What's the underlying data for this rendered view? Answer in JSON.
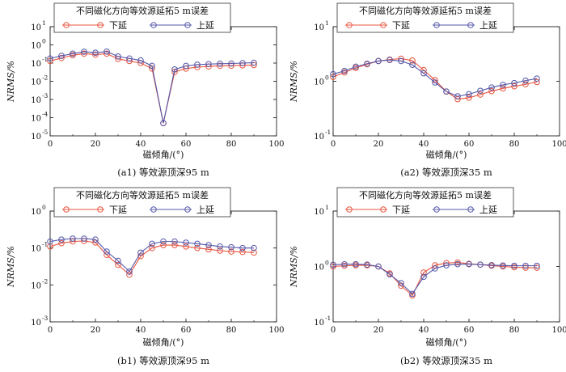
{
  "figure": {
    "captions": [
      "(a1) 等效源顶深95 m",
      "(a2) 等效源顶深35 m",
      "(b1) 等效源顶深95 m",
      "(b2) 等效源顶深35 m"
    ]
  },
  "colors": {
    "down": "#e8543f",
    "up": "#5457a8"
  },
  "chart_data": [
    {
      "type": "line",
      "panel": "a1",
      "title": "不同磁化方向等效源延拓5 m误差",
      "caption": "(a1) 等效源顶深95 m",
      "xlabel": "磁倾角/(°)",
      "ylabel": "NRMS/%",
      "xlim": [
        0,
        100
      ],
      "xticks": [
        0,
        20,
        40,
        60,
        80,
        100
      ],
      "ylim": [
        1e-05,
        10
      ],
      "yscale": "log",
      "yticks": [
        1e-05,
        0.0001,
        0.001,
        0.01,
        0.1,
        1,
        10
      ],
      "ytick_labels": [
        [
          "10",
          "-5"
        ],
        [
          "10",
          "-4"
        ],
        [
          "10",
          "-3"
        ],
        [
          "10",
          "-2"
        ],
        [
          "10",
          "-1"
        ],
        [
          "10",
          "0"
        ],
        [
          "10",
          "1"
        ]
      ],
      "legend": {
        "position": "top-center",
        "title": "不同磁化方向等效源延拓5 m误差"
      },
      "x": [
        0,
        5,
        10,
        15,
        20,
        25,
        30,
        35,
        40,
        45,
        50,
        55,
        60,
        65,
        70,
        75,
        80,
        85,
        90
      ],
      "series": [
        {
          "name": "下延",
          "values": [
            0.13,
            0.19,
            0.27,
            0.33,
            0.29,
            0.33,
            0.17,
            0.13,
            0.1,
            0.05,
            5e-05,
            0.033,
            0.05,
            0.06,
            0.065,
            0.07,
            0.072,
            0.075,
            0.078
          ]
        },
        {
          "name": "上延",
          "values": [
            0.18,
            0.25,
            0.33,
            0.42,
            0.37,
            0.43,
            0.23,
            0.18,
            0.14,
            0.07,
            5e-05,
            0.045,
            0.07,
            0.082,
            0.088,
            0.092,
            0.095,
            0.1,
            0.105
          ]
        }
      ]
    },
    {
      "type": "line",
      "panel": "a2",
      "title": "不同磁化方向等效源延拓5 m误差",
      "caption": "(a2) 等效源顶深35 m",
      "xlabel": "磁倾角/(°)",
      "ylabel": "NRMS/%",
      "xlim": [
        0,
        100
      ],
      "xticks": [
        0,
        20,
        40,
        60,
        80,
        100
      ],
      "ylim": [
        0.1,
        10
      ],
      "yscale": "log",
      "yticks": [
        0.1,
        1,
        10
      ],
      "ytick_labels": [
        [
          "10",
          "-1"
        ],
        [
          "10",
          "0"
        ],
        [
          "10",
          "1"
        ]
      ],
      "legend": {
        "position": "top-center",
        "title": "不同磁化方向等效源延拓5 m误差"
      },
      "x": [
        0,
        5,
        10,
        15,
        20,
        25,
        30,
        35,
        40,
        45,
        50,
        55,
        60,
        65,
        70,
        75,
        80,
        85,
        90
      ],
      "series": [
        {
          "name": "下延",
          "values": [
            1.2,
            1.45,
            1.75,
            2.05,
            2.35,
            2.5,
            2.6,
            2.4,
            1.6,
            1.05,
            0.65,
            0.47,
            0.5,
            0.57,
            0.66,
            0.74,
            0.81,
            0.88,
            0.97
          ]
        },
        {
          "name": "上延",
          "values": [
            1.35,
            1.55,
            1.85,
            2.1,
            2.35,
            2.45,
            2.35,
            2.0,
            1.4,
            0.95,
            0.65,
            0.53,
            0.58,
            0.67,
            0.77,
            0.86,
            0.93,
            1.03,
            1.12
          ]
        }
      ]
    },
    {
      "type": "line",
      "panel": "b1",
      "title": "不同磁化方向等效源延拓5 m误差",
      "caption": "(b1) 等效源顶深95 m",
      "xlabel": "磁倾角/(°)",
      "ylabel": "NRMS/%",
      "xlim": [
        0,
        100
      ],
      "xticks": [
        0,
        20,
        40,
        60,
        80,
        100
      ],
      "ylim": [
        0.001,
        1
      ],
      "yscale": "log",
      "yticks": [
        0.001,
        0.01,
        0.1,
        1
      ],
      "ytick_labels": [
        [
          "10",
          "-3"
        ],
        [
          "10",
          "-2"
        ],
        [
          "10",
          "-1"
        ],
        [
          "10",
          "0"
        ]
      ],
      "legend": {
        "position": "top-center",
        "title": "不同磁化方向等效源延拓5 m误差"
      },
      "x": [
        0,
        5,
        10,
        15,
        20,
        25,
        30,
        35,
        40,
        45,
        50,
        55,
        60,
        65,
        70,
        75,
        80,
        85,
        90
      ],
      "series": [
        {
          "name": "下延",
          "values": [
            0.11,
            0.135,
            0.15,
            0.155,
            0.14,
            0.065,
            0.035,
            0.019,
            0.06,
            0.1,
            0.12,
            0.12,
            0.11,
            0.1,
            0.092,
            0.085,
            0.08,
            0.078,
            0.075
          ]
        },
        {
          "name": "上延",
          "values": [
            0.15,
            0.17,
            0.18,
            0.18,
            0.17,
            0.08,
            0.045,
            0.023,
            0.075,
            0.13,
            0.15,
            0.15,
            0.14,
            0.13,
            0.12,
            0.11,
            0.105,
            0.1,
            0.1
          ]
        }
      ]
    },
    {
      "type": "line",
      "panel": "b2",
      "title": "不同磁化方向等效源延拓5 m误差",
      "caption": "(b2) 等效源顶深35 m",
      "xlabel": "磁倾角/(°)",
      "ylabel": "NRMS/%",
      "xlim": [
        0,
        100
      ],
      "xticks": [
        0,
        20,
        40,
        60,
        80,
        100
      ],
      "ylim": [
        0.1,
        10
      ],
      "yscale": "log",
      "yticks": [
        0.1,
        1,
        10
      ],
      "ytick_labels": [
        [
          "10",
          "-1"
        ],
        [
          "10",
          "0"
        ],
        [
          "10",
          "1"
        ]
      ],
      "legend": {
        "position": "top-center",
        "title": "不同磁化方向等效源延拓5 m误差"
      },
      "x": [
        0,
        5,
        10,
        15,
        20,
        25,
        30,
        35,
        40,
        45,
        50,
        55,
        60,
        65,
        70,
        75,
        80,
        85,
        90
      ],
      "series": [
        {
          "name": "下延",
          "values": [
            1.0,
            1.03,
            1.05,
            1.05,
            1.0,
            0.75,
            0.45,
            0.3,
            0.78,
            1.05,
            1.15,
            1.18,
            1.12,
            1.08,
            1.03,
            1.0,
            0.97,
            0.95,
            0.95
          ]
        },
        {
          "name": "上延",
          "values": [
            1.07,
            1.1,
            1.1,
            1.08,
            1.0,
            0.72,
            0.5,
            0.32,
            0.65,
            0.92,
            1.05,
            1.1,
            1.1,
            1.08,
            1.06,
            1.04,
            1.03,
            1.03,
            1.03
          ]
        }
      ]
    }
  ]
}
